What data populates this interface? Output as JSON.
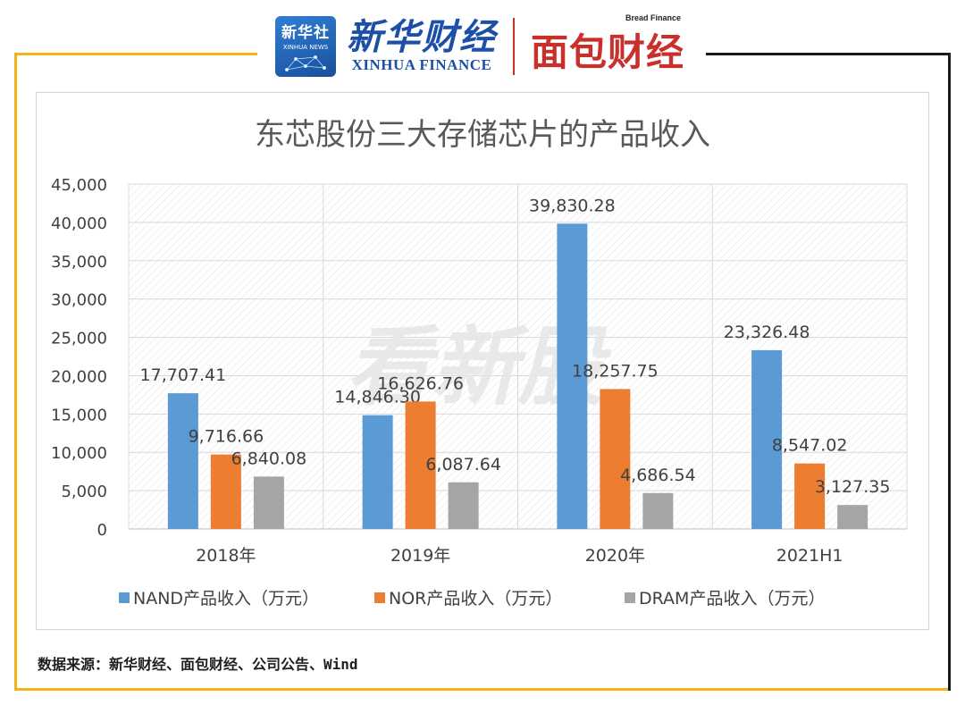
{
  "header": {
    "xinhua_badge_cn": "新华社",
    "xinhua_badge_en": "XINHUA NEWS",
    "xinhua_finance_cn": "新华财经",
    "xinhua_finance_en": "XINHUA FINANCE",
    "bread_finance_en": "Bread Finance",
    "bread_finance_cn": "面包财经"
  },
  "watermark": "看新股",
  "source_note": "数据来源：新华财经、面包财经、公司公告、Wind",
  "colors": {
    "frame_gold": "#f3b416",
    "frame_dark": "#1a1a1a",
    "nand": "#5b9bd5",
    "nor": "#ed7d31",
    "dram": "#a5a5a5"
  },
  "chart_data": {
    "type": "bar",
    "title": "东芯股份三大存储芯片的产品收入",
    "categories": [
      "2018年",
      "2019年",
      "2020年",
      "2021H1"
    ],
    "series": [
      {
        "name": "NAND产品收入（万元）",
        "values": [
          17707.41,
          14846.3,
          39830.28,
          23326.48
        ],
        "labels": [
          "17,707.41",
          "14,846.30",
          "39,830.28",
          "23,326.48"
        ]
      },
      {
        "name": "NOR产品收入（万元）",
        "values": [
          9716.66,
          16626.76,
          18257.75,
          8547.02
        ],
        "labels": [
          "9,716.66",
          "16,626.76",
          "18,257.75",
          "8,547.02"
        ]
      },
      {
        "name": "DRAM产品收入（万元）",
        "values": [
          6840.08,
          6087.64,
          4686.54,
          3127.35
        ],
        "labels": [
          "6,840.08",
          "6,087.64",
          "4,686.54",
          "3,127.35"
        ]
      }
    ],
    "ylim": [
      0,
      45000
    ],
    "yticks": [
      0,
      5000,
      10000,
      15000,
      20000,
      25000,
      30000,
      35000,
      40000,
      45000
    ],
    "ytick_labels": [
      "0",
      "5,000",
      "10,000",
      "15,000",
      "20,000",
      "25,000",
      "30,000",
      "35,000",
      "40,000",
      "45,000"
    ],
    "xlabel": "",
    "ylabel": "",
    "grid": true,
    "legend_position": "bottom"
  }
}
